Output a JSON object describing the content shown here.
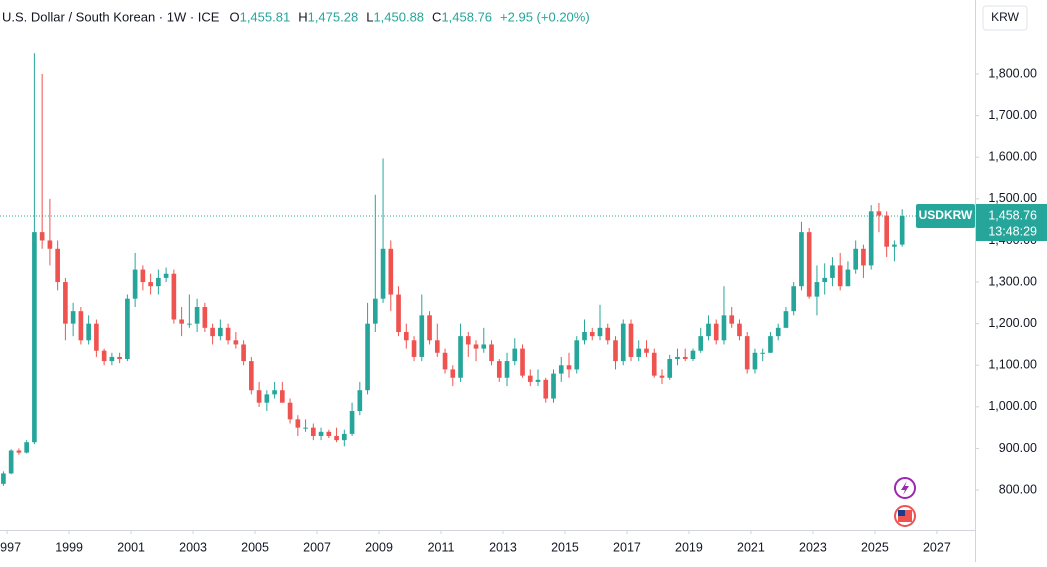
{
  "chart_data": {
    "type": "candlestick",
    "title": "U.S. Dollar / South Korean · 1W · ICE",
    "legend_values": [
      {
        "prefix": "O",
        "value": 1455.81,
        "label": "1,455.81"
      },
      {
        "prefix": "H",
        "value": 1475.28,
        "label": "1,475.28"
      },
      {
        "prefix": "L",
        "value": 1450.88,
        "label": "1,450.88"
      },
      {
        "prefix": "C",
        "value": 1458.76,
        "label": "1,458.76"
      }
    ],
    "change": "+2.95 (+0.20%)",
    "currency": "KRW",
    "last_price": {
      "symbol": "USDKRW",
      "value": 1458.76,
      "label": "1,458.76",
      "countdown": "13:48:29"
    },
    "up_color": "#26a69a",
    "down_color": "#ef5350",
    "grid": false,
    "xlim": [
      1996.77,
      2028.23
    ],
    "xticks": [
      1997,
      1999,
      2001,
      2003,
      2005,
      2007,
      2009,
      2011,
      2013,
      2015,
      2017,
      2019,
      2021,
      2023,
      2025,
      2027
    ],
    "ylim": [
      704,
      1978
    ],
    "yticks": [
      {
        "value": 800,
        "label": "800.00"
      },
      {
        "value": 900,
        "label": "900.00"
      },
      {
        "value": 1000,
        "label": "1,000.00"
      },
      {
        "value": 1100,
        "label": "1,100.00"
      },
      {
        "value": 1200,
        "label": "1,200.00"
      },
      {
        "value": 1300,
        "label": "1,300.00"
      },
      {
        "value": 1400,
        "label": "1,400.00"
      },
      {
        "value": 1500,
        "label": "1,500.00"
      },
      {
        "value": 1600,
        "label": "1,600.00"
      },
      {
        "value": 1700,
        "label": "1,700.00"
      },
      {
        "value": 1800,
        "label": "1,800.00"
      }
    ],
    "x": [
      1996.88,
      1997.13,
      1997.38,
      1997.63,
      1997.88,
      1998.13,
      1998.38,
      1998.63,
      1998.88,
      1999.13,
      1999.38,
      1999.63,
      1999.88,
      2000.13,
      2000.38,
      2000.63,
      2000.88,
      2001.13,
      2001.38,
      2001.63,
      2001.88,
      2002.13,
      2002.38,
      2002.63,
      2002.88,
      2003.13,
      2003.38,
      2003.63,
      2003.88,
      2004.13,
      2004.38,
      2004.63,
      2004.88,
      2005.13,
      2005.38,
      2005.63,
      2005.88,
      2006.13,
      2006.38,
      2006.63,
      2006.88,
      2007.13,
      2007.38,
      2007.63,
      2007.88,
      2008.13,
      2008.38,
      2008.63,
      2008.88,
      2009.13,
      2009.38,
      2009.63,
      2009.88,
      2010.13,
      2010.38,
      2010.63,
      2010.88,
      2011.13,
      2011.38,
      2011.63,
      2011.88,
      2012.13,
      2012.38,
      2012.63,
      2012.88,
      2013.13,
      2013.38,
      2013.63,
      2013.88,
      2014.13,
      2014.38,
      2014.63,
      2014.88,
      2015.13,
      2015.38,
      2015.63,
      2015.88,
      2016.13,
      2016.38,
      2016.63,
      2016.88,
      2017.13,
      2017.38,
      2017.63,
      2017.88,
      2018.13,
      2018.38,
      2018.63,
      2018.88,
      2019.13,
      2019.38,
      2019.63,
      2019.88,
      2020.13,
      2020.38,
      2020.63,
      2020.88,
      2021.13,
      2021.38,
      2021.63,
      2021.88,
      2022.13,
      2022.38,
      2022.63,
      2022.88,
      2023.13,
      2023.38,
      2023.63,
      2023.88,
      2024.13,
      2024.38,
      2024.63,
      2024.88,
      2025.13,
      2025.38,
      2025.63,
      2025.88
    ],
    "open": [
      815,
      840,
      895,
      890,
      915,
      1420,
      1400,
      1380,
      1300,
      1200,
      1230,
      1160,
      1200,
      1135,
      1110,
      1120,
      1115,
      1260,
      1330,
      1300,
      1290,
      1310,
      1320,
      1210,
      1200,
      1200,
      1240,
      1190,
      1170,
      1190,
      1160,
      1150,
      1110,
      1040,
      1010,
      1030,
      1040,
      1010,
      970,
      950,
      950,
      930,
      940,
      930,
      920,
      935,
      990,
      1040,
      1200,
      1260,
      1380,
      1270,
      1180,
      1160,
      1120,
      1220,
      1160,
      1130,
      1090,
      1070,
      1170,
      1150,
      1140,
      1150,
      1110,
      1070,
      1110,
      1140,
      1075,
      1060,
      1065,
      1020,
      1080,
      1100,
      1090,
      1160,
      1180,
      1170,
      1190,
      1160,
      1110,
      1200,
      1120,
      1140,
      1130,
      1075,
      1070,
      1115,
      1120,
      1115,
      1135,
      1170,
      1200,
      1160,
      1220,
      1200,
      1170,
      1090,
      1130,
      1130,
      1170,
      1190,
      1230,
      1290,
      1420,
      1265,
      1300,
      1310,
      1340,
      1290,
      1330,
      1380,
      1340,
      1470,
      1460,
      1385,
      1390
    ],
    "high": [
      845,
      898,
      900,
      920,
      1850,
      1800,
      1500,
      1400,
      1310,
      1250,
      1240,
      1220,
      1210,
      1140,
      1130,
      1130,
      1270,
      1370,
      1340,
      1320,
      1330,
      1335,
      1330,
      1240,
      1270,
      1260,
      1250,
      1200,
      1210,
      1200,
      1180,
      1160,
      1120,
      1060,
      1040,
      1060,
      1060,
      1020,
      980,
      970,
      960,
      950,
      945,
      950,
      945,
      1010,
      1060,
      1250,
      1510,
      1597,
      1400,
      1290,
      1200,
      1170,
      1270,
      1230,
      1200,
      1140,
      1100,
      1200,
      1180,
      1160,
      1190,
      1160,
      1115,
      1130,
      1165,
      1150,
      1090,
      1090,
      1070,
      1090,
      1120,
      1130,
      1170,
      1210,
      1190,
      1245,
      1200,
      1170,
      1210,
      1210,
      1160,
      1160,
      1140,
      1090,
      1125,
      1140,
      1140,
      1140,
      1190,
      1220,
      1210,
      1290,
      1240,
      1210,
      1180,
      1140,
      1140,
      1180,
      1200,
      1240,
      1300,
      1445,
      1430,
      1340,
      1345,
      1360,
      1370,
      1350,
      1400,
      1390,
      1485,
      1490,
      1470,
      1400,
      1475
    ],
    "low": [
      810,
      838,
      885,
      888,
      910,
      1380,
      1340,
      1280,
      1160,
      1170,
      1150,
      1150,
      1120,
      1100,
      1100,
      1105,
      1110,
      1240,
      1280,
      1270,
      1270,
      1300,
      1200,
      1170,
      1190,
      1180,
      1180,
      1150,
      1160,
      1150,
      1140,
      1100,
      1030,
      1000,
      990,
      1020,
      1010,
      960,
      930,
      940,
      920,
      920,
      925,
      915,
      905,
      930,
      980,
      1030,
      1180,
      1250,
      1230,
      1170,
      1140,
      1110,
      1110,
      1150,
      1120,
      1080,
      1050,
      1060,
      1120,
      1110,
      1130,
      1100,
      1060,
      1050,
      1100,
      1070,
      1050,
      1050,
      1010,
      1010,
      1060,
      1070,
      1080,
      1150,
      1160,
      1160,
      1150,
      1090,
      1100,
      1110,
      1110,
      1120,
      1070,
      1055,
      1065,
      1100,
      1110,
      1110,
      1130,
      1160,
      1150,
      1150,
      1190,
      1160,
      1080,
      1080,
      1110,
      1130,
      1160,
      1190,
      1220,
      1280,
      1260,
      1220,
      1270,
      1290,
      1280,
      1290,
      1320,
      1310,
      1330,
      1420,
      1360,
      1350,
      1385
    ],
    "close": [
      840,
      895,
      890,
      915,
      1420,
      1400,
      1380,
      1300,
      1200,
      1230,
      1160,
      1200,
      1135,
      1110,
      1120,
      1115,
      1260,
      1330,
      1300,
      1290,
      1310,
      1320,
      1210,
      1200,
      1200,
      1240,
      1190,
      1170,
      1190,
      1160,
      1150,
      1110,
      1040,
      1010,
      1030,
      1040,
      1010,
      970,
      950,
      950,
      930,
      940,
      930,
      920,
      935,
      990,
      1040,
      1200,
      1260,
      1380,
      1270,
      1180,
      1160,
      1120,
      1220,
      1160,
      1130,
      1090,
      1070,
      1170,
      1150,
      1140,
      1150,
      1110,
      1070,
      1110,
      1140,
      1075,
      1060,
      1065,
      1020,
      1080,
      1100,
      1090,
      1160,
      1180,
      1170,
      1190,
      1160,
      1110,
      1200,
      1120,
      1140,
      1130,
      1075,
      1070,
      1115,
      1120,
      1115,
      1135,
      1170,
      1200,
      1160,
      1220,
      1200,
      1170,
      1090,
      1130,
      1130,
      1170,
      1190,
      1230,
      1290,
      1420,
      1265,
      1300,
      1310,
      1340,
      1290,
      1330,
      1380,
      1340,
      1470,
      1460,
      1385,
      1390,
      1458.76
    ]
  }
}
